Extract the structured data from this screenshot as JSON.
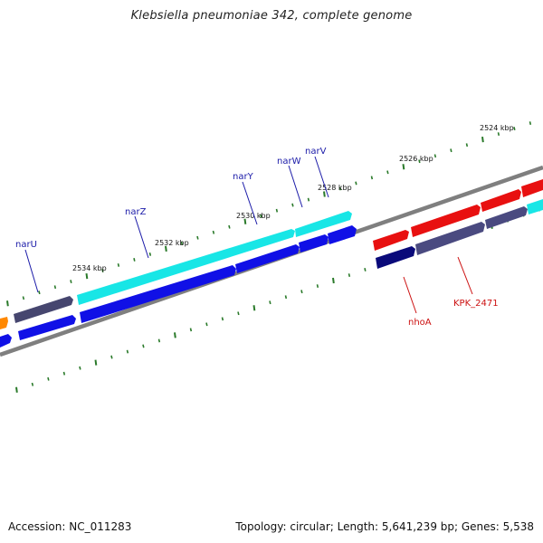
{
  "map": {
    "title": "Klebsiella pneumoniae 342, complete genome",
    "accession_text": "Accession: NC_011283",
    "summary_text": "Topology: circular; Length: 5,641,239 bp; Genes: 5,538"
  },
  "colors": {
    "backbone": "#7f7f7f",
    "tick": "#2a7a2a",
    "forward_label": "#1a1aa8",
    "reverse_label": "#cc1111",
    "forward_gene": "#1010e6",
    "forward_gene_top": "#46466f",
    "cyan_gene": "#18e6e6",
    "reverse_gene": "#e81010",
    "reverse_gene_dark": "#0a0a7a",
    "reverse_gene_grey": "#4a4a80",
    "orange_gene": "#ff8800"
  },
  "scale": {
    "kbp_labels": [
      "2524 kbp",
      "2526 kbp",
      "2528 kbp",
      "2530 kbp",
      "2532 kbp",
      "2534 kbp"
    ]
  },
  "genes": {
    "forward_labels": [
      "narU",
      "narZ",
      "narY",
      "narW",
      "narV"
    ],
    "reverse_labels": [
      "nhoA",
      "KPK_2471"
    ]
  }
}
